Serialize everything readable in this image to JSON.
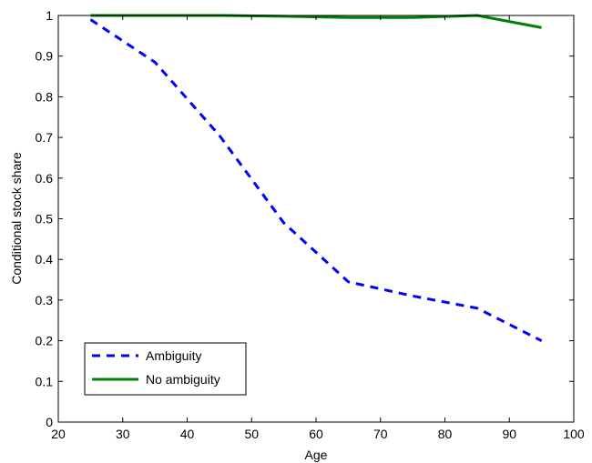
{
  "chart_data": {
    "type": "line",
    "title": "",
    "xlabel": "Age",
    "ylabel": "Conditional stock share",
    "xlim": [
      20,
      100
    ],
    "ylim": [
      0,
      1
    ],
    "xticks": [
      20,
      30,
      40,
      50,
      60,
      70,
      80,
      90,
      100
    ],
    "yticks": [
      0,
      0.1,
      0.2,
      0.3,
      0.4,
      0.5,
      0.6,
      0.7,
      0.8,
      0.9,
      1
    ],
    "x": [
      25,
      35,
      45,
      55,
      65,
      75,
      85,
      95
    ],
    "grid": false,
    "legend_position": "bottom-left",
    "series": [
      {
        "name": "Ambiguity",
        "values": [
          0.99,
          0.885,
          0.705,
          0.49,
          0.345,
          0.31,
          0.28,
          0.2
        ],
        "color": "#0000ff",
        "style": "dashed"
      },
      {
        "name": "No ambiguity",
        "values": [
          1.0,
          1.0,
          1.0,
          0.998,
          0.995,
          0.995,
          1.0,
          0.97
        ],
        "color": "#008000",
        "style": "solid"
      }
    ]
  }
}
